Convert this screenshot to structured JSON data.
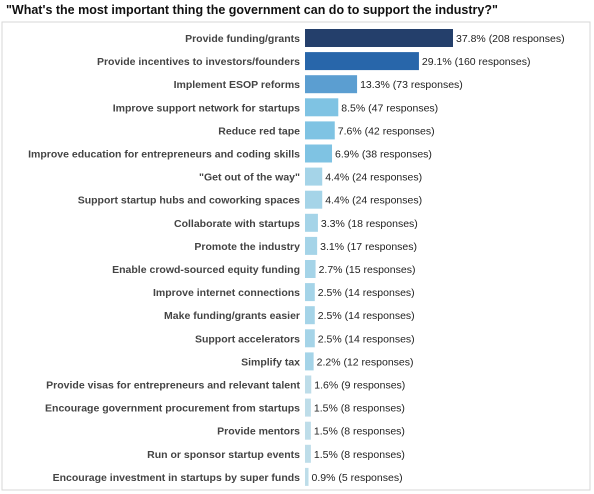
{
  "chart_data": {
    "type": "bar",
    "orientation": "horizontal",
    "title": "\"What's the most important thing the government can do to support the industry?\"",
    "xlabel": "",
    "ylabel": "",
    "grid": false,
    "legend": "none",
    "categories": [
      "Provide funding/grants",
      "Provide incentives to investors/founders",
      "Implement ESOP reforms",
      "Improve support network for startups",
      "Reduce red tape",
      "Improve education for entrepreneurs and coding skills",
      "\"Get out of the way\"",
      "Support startup hubs and coworking spaces",
      "Collaborate with startups",
      "Promote the industry",
      "Enable crowd-sourced equity funding",
      "Improve internet connections",
      "Make funding/grants easier",
      "Support accelerators",
      "Simplify tax",
      "Provide visas for entrepreneurs and relevant talent",
      "Encourage government procurement from startups",
      "Provide mentors",
      "Run or sponsor startup events",
      "Encourage investment in startups by super funds"
    ],
    "values": [
      37.8,
      29.1,
      13.3,
      8.5,
      7.6,
      6.9,
      4.4,
      4.4,
      3.3,
      3.1,
      2.7,
      2.5,
      2.5,
      2.5,
      2.2,
      1.6,
      1.5,
      1.5,
      1.5,
      0.9
    ],
    "responses": [
      208,
      160,
      73,
      47,
      42,
      38,
      24,
      24,
      18,
      17,
      15,
      14,
      14,
      14,
      12,
      9,
      8,
      8,
      8,
      5
    ],
    "data_labels": [
      "37.8% (208 responses)",
      "29.1% (160 responses)",
      "13.3% (73 responses)",
      "8.5% (47 responses)",
      "7.6% (42 responses)",
      "6.9% (38 responses)",
      "4.4% (24 responses)",
      "4.4% (24 responses)",
      "3.3% (18 responses)",
      "3.1% (17 responses)",
      "2.7% (15 responses)",
      "2.5% (14 responses)",
      "2.5% (14 responses)",
      "2.5% (14 responses)",
      "2.2% (12 responses)",
      "1.6% (9 responses)",
      "1.5% (8 responses)",
      "1.5% (8 responses)",
      "1.5% (8 responses)",
      "0.9% (5 responses)"
    ],
    "xlim": [
      0,
      37.8
    ],
    "colors": {
      "rank_1": "#243f6b",
      "rank_2": "#2866aa",
      "rank_3": "#5b9ed1",
      "rank_4_6": "#7fc3e3",
      "rank_7_15": "#a5d4e8",
      "rank_16_20": "#bedde9"
    }
  }
}
